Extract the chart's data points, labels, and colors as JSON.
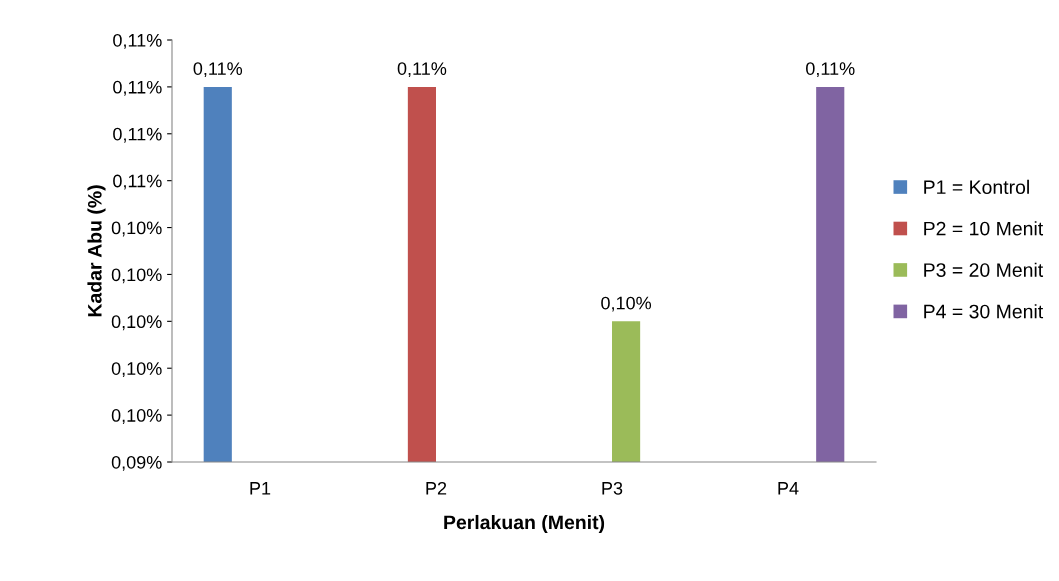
{
  "chart_data": {
    "type": "bar",
    "xlabel": "Perlakuan (Menit)",
    "ylabel": "Kadar Abu (%)",
    "categories": [
      "P1",
      "P2",
      "P3",
      "P4"
    ],
    "series": [
      {
        "name": "P1 = Kontrol",
        "color": "#4f81bd",
        "values": [
          0.1125,
          null,
          null,
          null
        ],
        "value_labels": [
          "0,11%",
          null,
          null,
          null
        ]
      },
      {
        "name": "P2 = 10 Menit",
        "color": "#c0504d",
        "values": [
          null,
          0.1125,
          null,
          null
        ],
        "value_labels": [
          null,
          "0,11%",
          null,
          null
        ]
      },
      {
        "name": "P3 = 20 Menit",
        "color": "#9bbb59",
        "values": [
          null,
          null,
          0.1,
          null
        ],
        "value_labels": [
          null,
          null,
          "0,10%",
          null
        ]
      },
      {
        "name": "P4 = 30 Menit",
        "color": "#8064a2",
        "values": [
          null,
          null,
          null,
          0.1125
        ],
        "value_labels": [
          null,
          null,
          null,
          "0,11%"
        ]
      }
    ],
    "ylim": [
      0.0925,
      0.115
    ],
    "yticks": [
      {
        "value": 0.0925,
        "label": "0,09%"
      },
      {
        "value": 0.095,
        "label": "0,10%"
      },
      {
        "value": 0.0975,
        "label": "0,10%"
      },
      {
        "value": 0.1,
        "label": "0,10%"
      },
      {
        "value": 0.1025,
        "label": "0,10%"
      },
      {
        "value": 0.105,
        "label": "0,10%"
      },
      {
        "value": 0.1075,
        "label": "0,11%"
      },
      {
        "value": 0.11,
        "label": "0,11%"
      },
      {
        "value": 0.1125,
        "label": "0,11%"
      },
      {
        "value": 0.115,
        "label": "0,11%"
      }
    ],
    "grid": false,
    "legend": "right"
  }
}
